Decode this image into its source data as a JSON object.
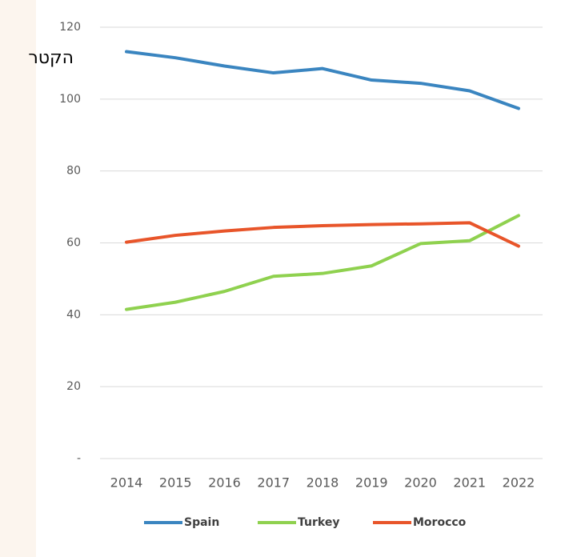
{
  "chart_data": {
    "type": "line",
    "axis_title": "הקטר",
    "categories": [
      "2014",
      "2015",
      "2016",
      "2017",
      "2018",
      "2019",
      "2020",
      "2021",
      "2022"
    ],
    "series": [
      {
        "name": "Spain",
        "color": "#3a85c0",
        "values": [
          113.2,
          111.5,
          109.2,
          107.3,
          108.5,
          105.3,
          104.4,
          102.3,
          97.4
        ]
      },
      {
        "name": "Turkey",
        "color": "#8fd14f",
        "values": [
          41.5,
          43.5,
          46.5,
          50.7,
          51.5,
          53.6,
          59.8,
          60.6,
          67.6
        ]
      },
      {
        "name": "Morocco",
        "color": "#e8552a",
        "values": [
          60.2,
          62.1,
          63.3,
          64.3,
          64.8,
          65.1,
          65.3,
          65.6,
          59.1
        ]
      }
    ],
    "ylim": [
      0,
      120
    ],
    "yticks": [
      {
        "value": 0,
        "label": "-"
      },
      20,
      40,
      60,
      80,
      100,
      120
    ],
    "grid": true,
    "legend": "bottom"
  }
}
